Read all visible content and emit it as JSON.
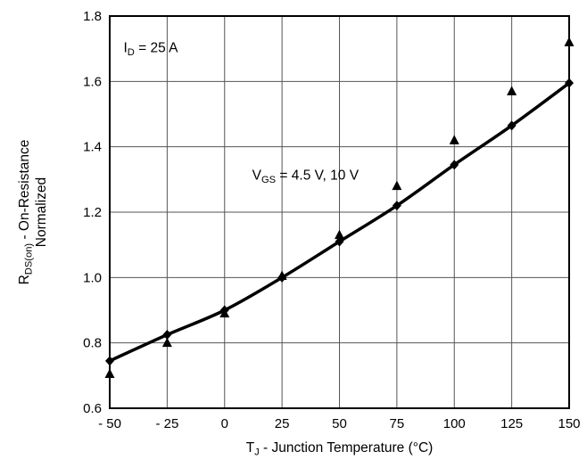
{
  "chart_data": {
    "type": "line",
    "title": "",
    "xlabel_parts": [
      {
        "t": "T"
      },
      {
        "t": "J",
        "sub": true
      },
      {
        "t": " - Junction Temperature (°C)"
      }
    ],
    "ylabel_line1_parts": [
      {
        "t": "R"
      },
      {
        "t": "DS(on)",
        "sub": true
      },
      {
        "t": " - On-Resistance"
      }
    ],
    "ylabel_line2": "Normalized",
    "xlim": [
      -50,
      150
    ],
    "ylim": [
      0.6,
      1.8
    ],
    "xticks": [
      -50,
      -25,
      0,
      25,
      50,
      75,
      100,
      125,
      150
    ],
    "xtick_labels": [
      "- 50",
      "- 25",
      "0",
      "25",
      "50",
      "75",
      "100",
      "125",
      "150"
    ],
    "yticks": [
      0.6,
      0.8,
      1.0,
      1.2,
      1.4,
      1.6,
      1.8
    ],
    "ytick_labels": [
      "0.6",
      "0.8",
      "1.0",
      "1.2",
      "1.4",
      "1.6",
      "1.8"
    ],
    "grid": true,
    "line_color": "#000000",
    "grid_color": "#555555",
    "annotations": [
      {
        "parts": [
          {
            "t": "I"
          },
          {
            "t": "D",
            "sub": true
          },
          {
            "t": " = 25 A"
          }
        ],
        "x": -44,
        "y": 1.69
      },
      {
        "parts": [
          {
            "t": "V"
          },
          {
            "t": "GS",
            "sub": true
          },
          {
            "t": " = 4.5 V, 10 V"
          }
        ],
        "x": 12,
        "y": 1.3
      }
    ],
    "x": [
      -50,
      -25,
      0,
      25,
      50,
      75,
      100,
      125,
      150
    ],
    "series": [
      {
        "name": "fitted-curve-diamonds",
        "marker": "diamond",
        "line": true,
        "values": [
          0.745,
          0.825,
          0.9,
          1.0,
          1.11,
          1.22,
          1.345,
          1.465,
          1.595
        ]
      },
      {
        "name": "measured-triangles",
        "marker": "triangle",
        "line": false,
        "values": [
          0.705,
          0.8,
          0.89,
          1.005,
          1.13,
          1.28,
          1.42,
          1.57,
          1.72
        ]
      }
    ]
  }
}
